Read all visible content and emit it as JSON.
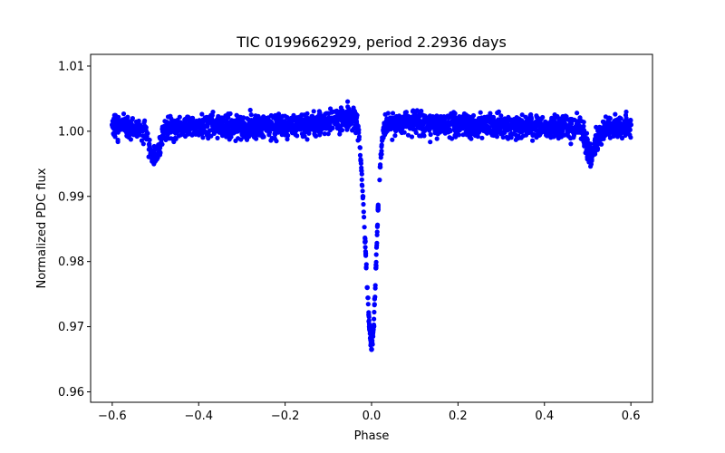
{
  "chart_data": {
    "type": "scatter",
    "title": "TIC 0199662929, period 2.2936 days",
    "xlabel": "Phase",
    "ylabel": "Normalized PDC flux",
    "xlim": [
      -0.65,
      0.65
    ],
    "ylim": [
      0.9584,
      1.0118
    ],
    "x_ticks": [
      -0.6,
      -0.4,
      -0.2,
      0.0,
      0.2,
      0.4,
      0.6
    ],
    "x_tick_labels": [
      "−0.6",
      "−0.4",
      "−0.2",
      "0.0",
      "0.2",
      "0.4",
      "0.6"
    ],
    "y_ticks": [
      0.96,
      0.97,
      0.98,
      0.99,
      1.0,
      1.01
    ],
    "y_tick_labels": [
      "0.96",
      "0.97",
      "0.98",
      "0.99",
      "1.00",
      "1.01"
    ],
    "grid": false,
    "legend": "none",
    "marker_color": "#0000ff",
    "series": [
      {
        "x": [
          -0.6,
          -0.58,
          -0.56,
          -0.54,
          -0.52,
          -0.51,
          -0.5,
          -0.49,
          -0.48,
          -0.46,
          -0.44,
          -0.42,
          -0.4,
          -0.38,
          -0.36,
          -0.34,
          -0.32,
          -0.3,
          -0.28,
          -0.26,
          -0.24,
          -0.22,
          -0.2,
          -0.18,
          -0.16,
          -0.14,
          -0.12,
          -0.1,
          -0.08,
          -0.06,
          -0.05,
          -0.04,
          -0.035,
          -0.03,
          -0.025,
          -0.02,
          -0.015,
          -0.01,
          -0.005,
          0.0,
          0.005,
          0.01,
          0.015,
          0.02,
          0.025,
          0.03,
          0.035,
          0.04,
          0.05,
          0.06,
          0.08,
          0.1,
          0.12,
          0.14,
          0.16,
          0.18,
          0.2,
          0.22,
          0.24,
          0.26,
          0.28,
          0.3,
          0.32,
          0.34,
          0.36,
          0.38,
          0.4,
          0.42,
          0.44,
          0.46,
          0.48,
          0.49,
          0.5,
          0.51,
          0.52,
          0.54,
          0.56,
          0.58,
          0.6
        ],
        "y": [
          1.001,
          1.0008,
          1.0007,
          1.0005,
          0.9995,
          0.9968,
          0.996,
          0.9975,
          1.0005,
          1.0007,
          1.0008,
          1.0008,
          1.0008,
          1.0008,
          1.0008,
          1.0008,
          1.0008,
          1.0008,
          1.0008,
          1.0008,
          1.0008,
          1.0008,
          1.0008,
          1.0008,
          1.0009,
          1.001,
          1.0012,
          1.0015,
          1.0018,
          1.002,
          1.0022,
          1.0025,
          1.0015,
          1.0002,
          0.9955,
          0.99,
          0.983,
          0.976,
          0.97,
          0.9665,
          0.97,
          0.979,
          0.988,
          0.9945,
          0.999,
          1.001,
          1.0015,
          1.0014,
          1.0013,
          1.0012,
          1.0012,
          1.0012,
          1.0011,
          1.0011,
          1.001,
          1.001,
          1.0009,
          1.0009,
          1.0008,
          1.0008,
          1.0008,
          1.0008,
          1.0008,
          1.0008,
          1.0008,
          1.0008,
          1.0008,
          1.0008,
          1.0008,
          1.0006,
          1.0005,
          0.9998,
          0.9972,
          0.9962,
          0.9985,
          1.0006,
          1.0007,
          1.0008,
          1.001
        ]
      }
    ]
  }
}
